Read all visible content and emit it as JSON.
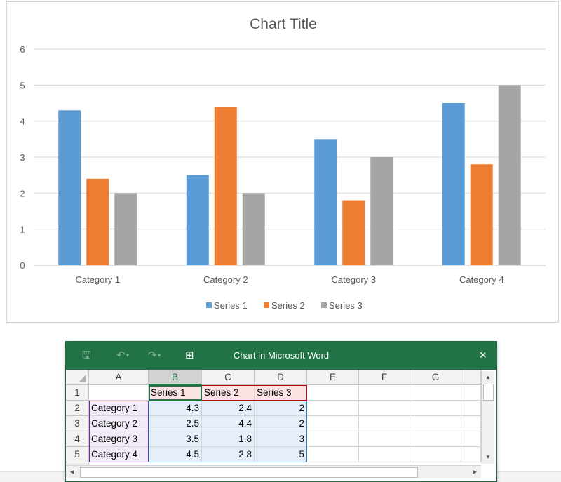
{
  "chart_data": {
    "type": "bar",
    "title": "Chart Title",
    "categories": [
      "Category 1",
      "Category 2",
      "Category 3",
      "Category 4"
    ],
    "series": [
      {
        "name": "Series 1",
        "values": [
          4.3,
          2.5,
          3.5,
          4.5
        ],
        "color": "#5b9bd5"
      },
      {
        "name": "Series 2",
        "values": [
          2.4,
          4.4,
          1.8,
          2.8
        ],
        "color": "#ed7d31"
      },
      {
        "name": "Series 3",
        "values": [
          2,
          2,
          3,
          5
        ],
        "color": "#a5a5a5"
      }
    ],
    "ylim": [
      0,
      6
    ],
    "yticks": [
      0,
      1,
      2,
      3,
      4,
      5,
      6
    ],
    "grid": true,
    "legend": "bottom"
  },
  "excel": {
    "window_title": "Chart in Microsoft Word",
    "close_label": "×",
    "icons": {
      "save": "save-icon",
      "undo": "undo-icon",
      "redo": "redo-icon",
      "edit_data": "edit-data-icon",
      "close": "close-icon"
    },
    "column_headers": [
      "A",
      "B",
      "C",
      "D",
      "E",
      "F",
      "G"
    ],
    "row_headers": [
      "1",
      "2",
      "3",
      "4",
      "5"
    ],
    "rows": [
      [
        "",
        "Series 1",
        "Series 2",
        "Series 3"
      ],
      [
        "Category 1",
        "4.3",
        "2.4",
        "2"
      ],
      [
        "Category 2",
        "2.5",
        "4.4",
        "2"
      ],
      [
        "Category 3",
        "3.5",
        "1.8",
        "3"
      ],
      [
        "Category 4",
        "4.5",
        "2.8",
        "5"
      ]
    ],
    "range_colors": {
      "categories": "#7030a0",
      "series_names": "#c00000",
      "values": "#2e75b6",
      "active": "#217346"
    }
  }
}
